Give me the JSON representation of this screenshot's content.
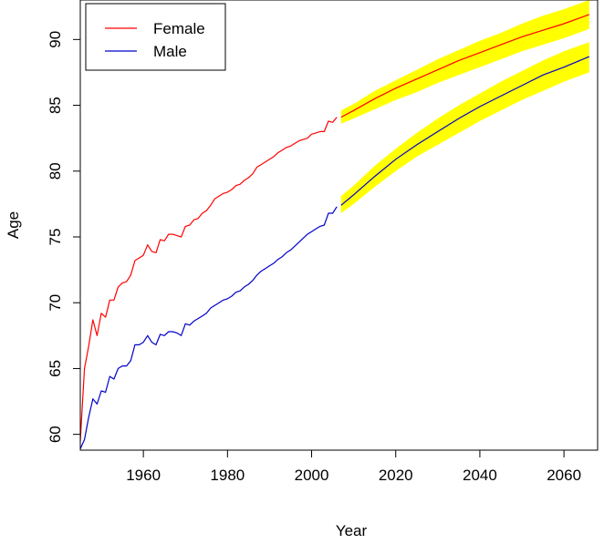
{
  "chart_data": {
    "type": "line",
    "title": "",
    "xlabel": "Year",
    "ylabel": "Age",
    "xlim": [
      1945,
      2068
    ],
    "ylim": [
      58.8,
      93
    ],
    "x_ticks": [
      1960,
      1980,
      2000,
      2020,
      2040,
      2060
    ],
    "y_ticks": [
      60,
      65,
      70,
      75,
      80,
      85,
      90
    ],
    "x_tick_labels": [
      "1960",
      "1980",
      "2000",
      "2020",
      "2040",
      "2060"
    ],
    "y_tick_labels": [
      "60",
      "65",
      "70",
      "75",
      "80",
      "85",
      "90"
    ],
    "grid": false,
    "legend": {
      "position": "top-left",
      "entries": [
        "Female",
        "Male"
      ]
    },
    "colors": {
      "Female": "#ff0000",
      "Male": "#0000cc",
      "band": "#ffff00"
    },
    "series": [
      {
        "name": "Female",
        "color": "#ff0000",
        "historical": [
          [
            1945,
            59.5
          ],
          [
            1946,
            65.0
          ],
          [
            1947,
            66.7
          ],
          [
            1948,
            68.7
          ],
          [
            1949,
            67.5
          ],
          [
            1950,
            69.2
          ],
          [
            1951,
            68.9
          ],
          [
            1952,
            70.2
          ],
          [
            1953,
            70.2
          ],
          [
            1954,
            71.2
          ],
          [
            1955,
            71.5
          ],
          [
            1956,
            71.6
          ],
          [
            1957,
            72.1
          ],
          [
            1958,
            73.2
          ],
          [
            1959,
            73.4
          ],
          [
            1960,
            73.6
          ],
          [
            1961,
            74.4
          ],
          [
            1962,
            73.9
          ],
          [
            1963,
            73.8
          ],
          [
            1964,
            74.8
          ],
          [
            1965,
            74.7
          ],
          [
            1966,
            75.2
          ],
          [
            1967,
            75.2
          ],
          [
            1968,
            75.1
          ],
          [
            1969,
            75.0
          ],
          [
            1970,
            75.8
          ],
          [
            1971,
            75.9
          ],
          [
            1972,
            76.3
          ],
          [
            1973,
            76.4
          ],
          [
            1974,
            76.8
          ],
          [
            1975,
            77.0
          ],
          [
            1976,
            77.4
          ],
          [
            1977,
            77.9
          ],
          [
            1978,
            78.1
          ],
          [
            1979,
            78.3
          ],
          [
            1980,
            78.4
          ],
          [
            1981,
            78.6
          ],
          [
            1982,
            78.9
          ],
          [
            1983,
            79.0
          ],
          [
            1984,
            79.3
          ],
          [
            1985,
            79.5
          ],
          [
            1986,
            79.8
          ],
          [
            1987,
            80.3
          ],
          [
            1988,
            80.5
          ],
          [
            1989,
            80.7
          ],
          [
            1990,
            80.9
          ],
          [
            1991,
            81.1
          ],
          [
            1992,
            81.4
          ],
          [
            1993,
            81.6
          ],
          [
            1994,
            81.8
          ],
          [
            1995,
            81.9
          ],
          [
            1996,
            82.1
          ],
          [
            1997,
            82.3
          ],
          [
            1998,
            82.4
          ],
          [
            1999,
            82.5
          ],
          [
            2000,
            82.8
          ],
          [
            2001,
            82.9
          ],
          [
            2002,
            83.0
          ],
          [
            2003,
            83.0
          ],
          [
            2004,
            83.8
          ],
          [
            2005,
            83.7
          ],
          [
            2006,
            84.1
          ]
        ],
        "forecast_x": [
          2007,
          2010,
          2015,
          2020,
          2025,
          2030,
          2035,
          2040,
          2045,
          2050,
          2055,
          2060,
          2066
        ],
        "forecast_mean": [
          84.1,
          84.6,
          85.5,
          86.3,
          87.0,
          87.7,
          88.4,
          89.0,
          89.6,
          90.2,
          90.7,
          91.2,
          91.9
        ],
        "forecast_lower": [
          83.6,
          84.0,
          84.7,
          85.4,
          86.0,
          86.7,
          87.3,
          87.9,
          88.5,
          89.1,
          89.6,
          90.1,
          90.8
        ],
        "forecast_upper": [
          84.6,
          85.1,
          86.1,
          86.9,
          87.7,
          88.5,
          89.2,
          89.9,
          90.5,
          91.2,
          91.8,
          92.3,
          93.0
        ]
      },
      {
        "name": "Male",
        "color": "#0000cc",
        "historical": [
          [
            1945,
            58.9
          ],
          [
            1946,
            59.6
          ],
          [
            1947,
            61.3
          ],
          [
            1948,
            62.7
          ],
          [
            1949,
            62.3
          ],
          [
            1950,
            63.3
          ],
          [
            1951,
            63.2
          ],
          [
            1952,
            64.4
          ],
          [
            1953,
            64.2
          ],
          [
            1954,
            65.0
          ],
          [
            1955,
            65.2
          ],
          [
            1956,
            65.2
          ],
          [
            1957,
            65.6
          ],
          [
            1958,
            66.8
          ],
          [
            1959,
            66.8
          ],
          [
            1960,
            67.0
          ],
          [
            1961,
            67.5
          ],
          [
            1962,
            67.0
          ],
          [
            1963,
            66.8
          ],
          [
            1964,
            67.6
          ],
          [
            1965,
            67.5
          ],
          [
            1966,
            67.8
          ],
          [
            1967,
            67.8
          ],
          [
            1968,
            67.7
          ],
          [
            1969,
            67.5
          ],
          [
            1970,
            68.4
          ],
          [
            1971,
            68.3
          ],
          [
            1972,
            68.6
          ],
          [
            1973,
            68.8
          ],
          [
            1974,
            69.0
          ],
          [
            1975,
            69.2
          ],
          [
            1976,
            69.6
          ],
          [
            1977,
            69.8
          ],
          [
            1978,
            70.0
          ],
          [
            1979,
            70.2
          ],
          [
            1980,
            70.3
          ],
          [
            1981,
            70.5
          ],
          [
            1982,
            70.8
          ],
          [
            1983,
            70.9
          ],
          [
            1984,
            71.2
          ],
          [
            1985,
            71.4
          ],
          [
            1986,
            71.7
          ],
          [
            1987,
            72.1
          ],
          [
            1988,
            72.4
          ],
          [
            1989,
            72.6
          ],
          [
            1990,
            72.8
          ],
          [
            1991,
            73.0
          ],
          [
            1992,
            73.3
          ],
          [
            1993,
            73.5
          ],
          [
            1994,
            73.8
          ],
          [
            1995,
            74.0
          ],
          [
            1996,
            74.3
          ],
          [
            1997,
            74.6
          ],
          [
            1998,
            74.9
          ],
          [
            1999,
            75.2
          ],
          [
            2000,
            75.4
          ],
          [
            2001,
            75.6
          ],
          [
            2002,
            75.8
          ],
          [
            2003,
            75.9
          ],
          [
            2004,
            76.8
          ],
          [
            2005,
            76.8
          ],
          [
            2006,
            77.3
          ]
        ],
        "forecast_x": [
          2007,
          2010,
          2015,
          2020,
          2025,
          2030,
          2035,
          2040,
          2045,
          2050,
          2055,
          2060,
          2066
        ],
        "forecast_mean": [
          77.4,
          78.2,
          79.6,
          80.9,
          82.0,
          83.0,
          84.0,
          84.9,
          85.7,
          86.5,
          87.3,
          87.9,
          88.7
        ],
        "forecast_lower": [
          76.8,
          77.5,
          78.8,
          80.0,
          81.1,
          82.0,
          82.9,
          83.8,
          84.6,
          85.4,
          86.1,
          86.8,
          87.5
        ],
        "forecast_upper": [
          78.1,
          78.9,
          80.4,
          81.7,
          82.9,
          84.0,
          85.0,
          85.9,
          86.8,
          87.6,
          88.4,
          89.1,
          89.8
        ]
      }
    ]
  }
}
